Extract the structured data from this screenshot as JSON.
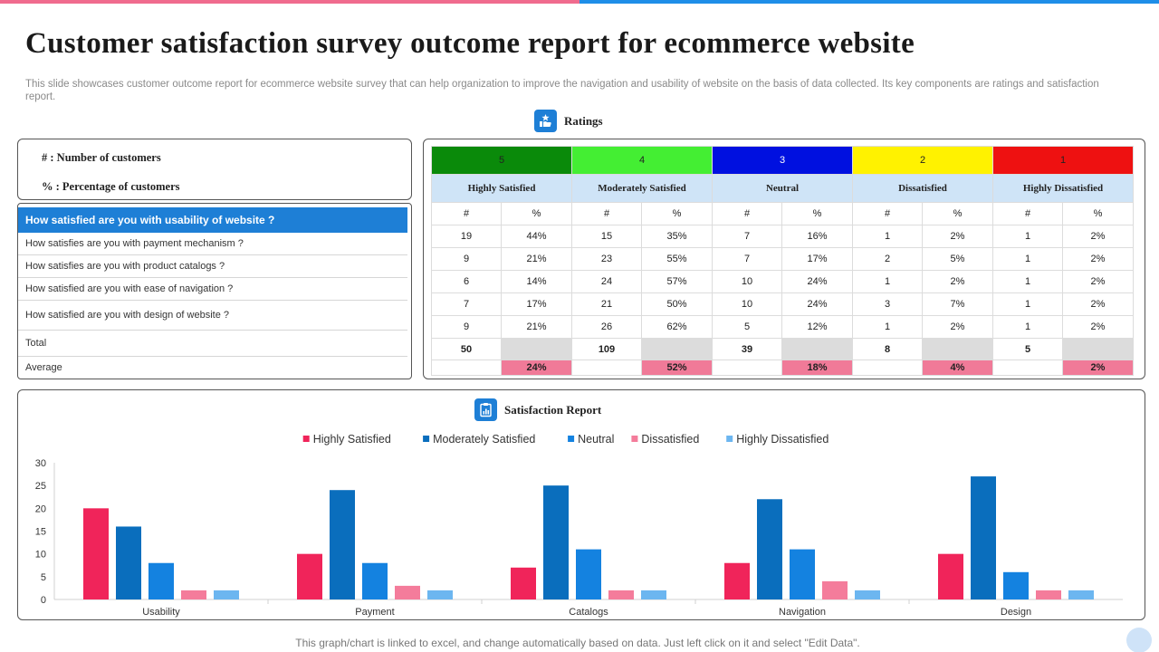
{
  "colors": {
    "accent_blue": "#1e7fd6",
    "accent_pink": "#f06b8e",
    "level_5": "#0a8a0a",
    "level_4": "#44ee33",
    "level_3": "#0010e0",
    "level_2": "#fff200",
    "level_1": "#ee1111",
    "name_row": "#cfe4f7",
    "avg_pink": "#f07a98"
  },
  "header": {
    "title": "Customer satisfaction survey outcome report for ecommerce website",
    "subtitle": "This slide showcases customer outcome report for ecommerce website survey that can help organization to improve the navigation and usability of website on the basis of data collected. Its key components are ratings and satisfaction report."
  },
  "ratings_section": {
    "label": "Ratings",
    "icon": "thumbs-up-star-icon"
  },
  "legend": {
    "count": "# : Number  of customers",
    "percent": "% : Percentage of customers"
  },
  "questions": [
    "How satisfied are you with usability of website ?",
    "How satisfies are you with payment mechanism ?",
    "How satisfies are you with product catalogs ?",
    "How satisfied are you with ease of navigation ?",
    "How satisfied are you with design of website ?"
  ],
  "totals_labels": {
    "total": "Total",
    "average": "Average"
  },
  "ratings_table": {
    "levels": [
      "5",
      "4",
      "3",
      "2",
      "1"
    ],
    "names": [
      "Highly Satisfied",
      "Moderately Satisfied",
      "Neutral",
      "Dissatisfied",
      "Highly Dissatisfied"
    ],
    "sub_headers": [
      "#",
      "%"
    ],
    "rows": [
      [
        "19",
        "44%",
        "15",
        "35%",
        "7",
        "16%",
        "1",
        "2%",
        "1",
        "2%"
      ],
      [
        "9",
        "21%",
        "23",
        "55%",
        "7",
        "17%",
        "2",
        "5%",
        "1",
        "2%"
      ],
      [
        "6",
        "14%",
        "24",
        "57%",
        "10",
        "24%",
        "1",
        "2%",
        "1",
        "2%"
      ],
      [
        "7",
        "17%",
        "21",
        "50%",
        "10",
        "24%",
        "3",
        "7%",
        "1",
        "2%"
      ],
      [
        "9",
        "21%",
        "26",
        "62%",
        "5",
        "12%",
        "1",
        "2%",
        "1",
        "2%"
      ]
    ],
    "totals": [
      "50",
      "109",
      "39",
      "8",
      "5"
    ],
    "averages": [
      "24%",
      "52%",
      "18%",
      "4%",
      "2%"
    ]
  },
  "satisfaction_section": {
    "label": "Satisfaction Report",
    "icon": "clipboard-chart-icon"
  },
  "chart_data": {
    "type": "bar",
    "title": "Satisfaction Report",
    "categories": [
      "Usability",
      "Payment",
      "Catalogs",
      "Navigation",
      "Design"
    ],
    "series": [
      {
        "name": "Highly Satisfied",
        "color": "#f0245a",
        "values": [
          20,
          10,
          7,
          8,
          10
        ]
      },
      {
        "name": "Moderately Satisfied",
        "color": "#0a6ebd",
        "values": [
          16,
          24,
          25,
          22,
          27
        ]
      },
      {
        "name": "Neutral",
        "color": "#1482e0",
        "values": [
          8,
          8,
          11,
          11,
          6
        ]
      },
      {
        "name": "Dissatisfied",
        "color": "#f47c9b",
        "values": [
          2,
          3,
          2,
          4,
          2
        ]
      },
      {
        "name": "Highly Dissatisfied",
        "color": "#6cb6f0",
        "values": [
          2,
          2,
          2,
          2,
          2
        ]
      }
    ],
    "ylim": [
      0,
      30
    ],
    "yticks": [
      0,
      5,
      10,
      15,
      20,
      25,
      30
    ],
    "xlabel": "",
    "ylabel": "",
    "legend_position": "top-center",
    "grid": false
  },
  "footer": {
    "note": "This graph/chart is linked to excel,  and change automatically based on data. Just left click on it and select \"Edit Data\"."
  }
}
